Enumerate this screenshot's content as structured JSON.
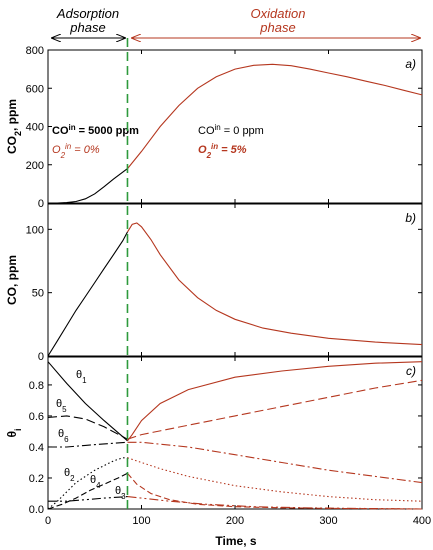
{
  "colors": {
    "adsorption": "#000000",
    "oxidation": "#b5371f",
    "divider": "#2e9a3c",
    "axis": "#000000"
  },
  "phases": {
    "adsorption": [
      "Adsorption",
      "phase"
    ],
    "oxidation": [
      "Oxidation",
      "phase"
    ]
  },
  "x_axis": {
    "label": "Time, s",
    "range": [
      0,
      400
    ],
    "ticks": [
      "0",
      "100",
      "200",
      "300",
      "400"
    ],
    "tick_values": [
      0,
      100,
      200,
      300,
      400
    ]
  },
  "divider_time": 85,
  "chart_data": [
    {
      "type": "line",
      "panel": "a)",
      "ylabel": [
        "CO",
        "2",
        ", ppm"
      ],
      "ylim": [
        0,
        800
      ],
      "yticks": [
        0,
        200,
        400,
        600,
        800
      ],
      "annotations": {
        "co_in_left": [
          "CO",
          "in",
          " = 5000 ppm"
        ],
        "o2_in_left": [
          "O",
          "2",
          "in",
          " = 0%"
        ],
        "co_in_right": [
          "CO",
          "in",
          " = 0 ppm"
        ],
        "o2_in_right": [
          "O",
          "2",
          "in",
          " = 5%"
        ]
      },
      "series": [
        {
          "phase": "adsorption",
          "style": "solid",
          "x": [
            0,
            10,
            20,
            30,
            40,
            50,
            60,
            70,
            85
          ],
          "y": [
            0,
            0,
            2,
            8,
            22,
            48,
            85,
            125,
            180
          ]
        },
        {
          "phase": "oxidation",
          "style": "solid",
          "x": [
            85,
            100,
            120,
            140,
            160,
            180,
            200,
            220,
            240,
            260,
            280,
            300,
            320,
            340,
            360,
            380,
            400
          ],
          "y": [
            180,
            270,
            400,
            510,
            600,
            660,
            700,
            720,
            725,
            718,
            700,
            680,
            660,
            637,
            615,
            590,
            565
          ]
        }
      ]
    },
    {
      "type": "line",
      "panel": "b)",
      "ylabel": [
        "CO, ppm"
      ],
      "ylim": [
        0,
        120
      ],
      "yticks": [
        0,
        50,
        100
      ],
      "series": [
        {
          "phase": "adsorption",
          "style": "solid",
          "x": [
            0,
            10,
            20,
            30,
            40,
            50,
            60,
            70,
            80,
            85
          ],
          "y": [
            0,
            12,
            24,
            36,
            47,
            58,
            69,
            80,
            91,
            98
          ]
        },
        {
          "phase": "oxidation",
          "style": "solid",
          "x": [
            85,
            90,
            95,
            100,
            110,
            120,
            140,
            160,
            180,
            200,
            230,
            260,
            300,
            350,
            400
          ],
          "y": [
            98,
            104,
            105,
            102,
            92,
            80,
            60,
            46,
            36,
            29,
            22,
            18,
            14,
            11,
            9
          ]
        }
      ]
    },
    {
      "type": "line",
      "panel": "c)",
      "ylabel": [
        "θ",
        "i"
      ],
      "ylim": [
        0,
        0.98
      ],
      "yticks": [
        0.0,
        0.2,
        0.4,
        0.6,
        0.8
      ],
      "series": [
        {
          "name": "θ1",
          "phase": "adsorption",
          "style": "solid",
          "x": [
            0,
            20,
            40,
            60,
            85
          ],
          "y": [
            0.95,
            0.81,
            0.68,
            0.57,
            0.44
          ]
        },
        {
          "name": "θ1",
          "phase": "oxidation",
          "style": "solid",
          "x": [
            85,
            90,
            100,
            120,
            150,
            200,
            250,
            300,
            350,
            400
          ],
          "y": [
            0.44,
            0.48,
            0.57,
            0.68,
            0.77,
            0.85,
            0.89,
            0.92,
            0.94,
            0.95
          ]
        },
        {
          "name": "θ5",
          "phase": "adsorption",
          "style": "dash",
          "x": [
            0,
            20,
            40,
            60,
            85
          ],
          "y": [
            0.59,
            0.6,
            0.58,
            0.53,
            0.45
          ]
        },
        {
          "name": "θ5",
          "phase": "oxidation",
          "style": "dash",
          "x": [
            85,
            100,
            150,
            200,
            250,
            300,
            350,
            400
          ],
          "y": [
            0.45,
            0.48,
            0.54,
            0.6,
            0.66,
            0.72,
            0.78,
            0.83
          ]
        },
        {
          "name": "θ6",
          "phase": "adsorption",
          "style": "dashdot",
          "x": [
            0,
            20,
            40,
            60,
            85
          ],
          "y": [
            0.4,
            0.4,
            0.41,
            0.42,
            0.43
          ]
        },
        {
          "name": "θ6",
          "phase": "oxidation",
          "style": "dashdot",
          "x": [
            85,
            100,
            150,
            200,
            250,
            300,
            350,
            400
          ],
          "y": [
            0.43,
            0.43,
            0.4,
            0.35,
            0.3,
            0.25,
            0.21,
            0.17
          ]
        },
        {
          "name": "θ2",
          "phase": "adsorption",
          "style": "dot",
          "x": [
            0,
            10,
            20,
            30,
            40,
            50,
            60,
            70,
            80,
            85
          ],
          "y": [
            0.0,
            0.05,
            0.11,
            0.17,
            0.21,
            0.25,
            0.28,
            0.31,
            0.33,
            0.33
          ]
        },
        {
          "name": "θ2",
          "phase": "oxidation",
          "style": "dot",
          "x": [
            85,
            100,
            120,
            150,
            200,
            250,
            300,
            350,
            400
          ],
          "y": [
            0.33,
            0.3,
            0.26,
            0.21,
            0.15,
            0.11,
            0.08,
            0.06,
            0.05
          ]
        },
        {
          "name": "θ4",
          "phase": "adsorption",
          "style": "longdash",
          "x": [
            0,
            15,
            30,
            45,
            60,
            75,
            85
          ],
          "y": [
            0.0,
            0.03,
            0.07,
            0.12,
            0.16,
            0.2,
            0.23
          ]
        },
        {
          "name": "θ4",
          "phase": "oxidation",
          "style": "longdash",
          "x": [
            85,
            95,
            110,
            130,
            160,
            200,
            250,
            300,
            400
          ],
          "y": [
            0.23,
            0.16,
            0.1,
            0.06,
            0.03,
            0.015,
            0.008,
            0.004,
            0.0
          ]
        },
        {
          "name": "θ3",
          "phase": "adsorption",
          "style": "dashdotdot",
          "x": [
            0,
            20,
            40,
            60,
            85
          ],
          "y": [
            0.05,
            0.05,
            0.06,
            0.07,
            0.08
          ]
        },
        {
          "name": "θ3",
          "phase": "oxidation",
          "style": "dashdotdot",
          "x": [
            85,
            100,
            130,
            170,
            220,
            280,
            340,
            400
          ],
          "y": [
            0.08,
            0.07,
            0.05,
            0.03,
            0.015,
            0.007,
            0.003,
            0.0
          ]
        }
      ],
      "curve_labels": [
        "θ1",
        "θ5",
        "θ6",
        "θ2",
        "θ4",
        "θ3"
      ]
    }
  ]
}
